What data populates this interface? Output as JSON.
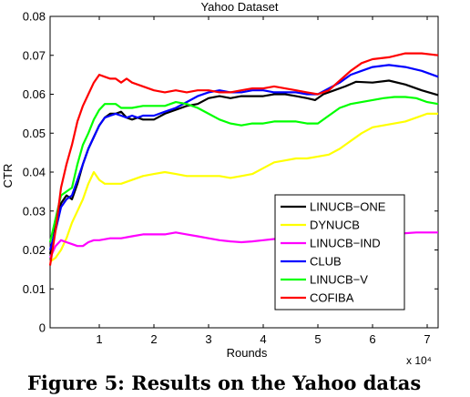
{
  "caption": "Figure 5: Results on the Yahoo datas",
  "chart_data": {
    "type": "line",
    "title": "Yahoo Dataset",
    "xlabel": "Rounds",
    "ylabel": "CTR",
    "x_multiplier_label": "x 10⁴",
    "xlim": [
      0.1,
      7.2
    ],
    "ylim": [
      0,
      0.08
    ],
    "x_ticks": [
      1,
      2,
      3,
      4,
      5,
      6,
      7
    ],
    "x_tick_labels": [
      "1",
      "2",
      "3",
      "4",
      "5",
      "6",
      "7"
    ],
    "y_ticks": [
      0,
      0.01,
      0.02,
      0.03,
      0.04,
      0.05,
      0.06,
      0.07,
      0.08
    ],
    "y_tick_labels": [
      "0",
      "0.01",
      "0.02",
      "0.03",
      "0.04",
      "0.05",
      "0.06",
      "0.07",
      "0.08"
    ],
    "grid": false,
    "legend_position": "lower-right",
    "series": [
      {
        "name": "LINUCB−ONE",
        "color": "#000000",
        "x": [
          0.1,
          0.2,
          0.3,
          0.4,
          0.5,
          0.6,
          0.7,
          0.8,
          0.9,
          1.0,
          1.1,
          1.2,
          1.3,
          1.4,
          1.5,
          1.6,
          1.7,
          1.8,
          2.0,
          2.2,
          2.4,
          2.6,
          2.8,
          3.0,
          3.2,
          3.4,
          3.6,
          3.8,
          4.0,
          4.2,
          4.4,
          4.6,
          4.8,
          4.95,
          5.1,
          5.3,
          5.5,
          5.7,
          6.0,
          6.3,
          6.6,
          6.9,
          7.2
        ],
        "y": [
          0.019,
          0.026,
          0.032,
          0.034,
          0.033,
          0.037,
          0.042,
          0.046,
          0.049,
          0.052,
          0.054,
          0.055,
          0.055,
          0.0555,
          0.054,
          0.0535,
          0.054,
          0.0535,
          0.0535,
          0.055,
          0.056,
          0.057,
          0.0575,
          0.059,
          0.0595,
          0.059,
          0.0595,
          0.0595,
          0.0595,
          0.06,
          0.06,
          0.0595,
          0.059,
          0.0585,
          0.06,
          0.061,
          0.062,
          0.0632,
          0.063,
          0.0635,
          0.0625,
          0.061,
          0.0598
        ]
      },
      {
        "name": "DYNUCB",
        "color": "#ffff00",
        "x": [
          0.1,
          0.2,
          0.3,
          0.4,
          0.5,
          0.6,
          0.7,
          0.8,
          0.9,
          1.0,
          1.1,
          1.2,
          1.4,
          1.6,
          1.8,
          2.0,
          2.2,
          2.4,
          2.6,
          2.8,
          3.0,
          3.2,
          3.4,
          3.6,
          3.8,
          4.0,
          4.2,
          4.4,
          4.6,
          4.8,
          5.0,
          5.2,
          5.4,
          5.6,
          5.8,
          6.0,
          6.2,
          6.4,
          6.6,
          6.8,
          7.0,
          7.2
        ],
        "y": [
          0.017,
          0.018,
          0.02,
          0.023,
          0.027,
          0.03,
          0.033,
          0.037,
          0.04,
          0.038,
          0.037,
          0.037,
          0.037,
          0.038,
          0.039,
          0.0395,
          0.04,
          0.0395,
          0.039,
          0.039,
          0.039,
          0.039,
          0.0385,
          0.039,
          0.0395,
          0.041,
          0.0425,
          0.043,
          0.0435,
          0.0435,
          0.044,
          0.0445,
          0.046,
          0.048,
          0.05,
          0.0515,
          0.052,
          0.0525,
          0.053,
          0.054,
          0.055,
          0.055
        ]
      },
      {
        "name": "LINUCB−IND",
        "color": "#ff00ff",
        "x": [
          0.1,
          0.2,
          0.3,
          0.4,
          0.5,
          0.6,
          0.7,
          0.8,
          0.9,
          1.0,
          1.2,
          1.4,
          1.6,
          1.8,
          2.0,
          2.2,
          2.4,
          2.6,
          2.8,
          3.0,
          3.2,
          3.4,
          3.6,
          3.8,
          4.0,
          4.2,
          4.4,
          4.6,
          4.8,
          5.0,
          5.2,
          5.4,
          5.6,
          5.8,
          6.0,
          6.2,
          6.4,
          6.6,
          6.8,
          7.0,
          7.2
        ],
        "y": [
          0.018,
          0.021,
          0.0225,
          0.022,
          0.0215,
          0.021,
          0.021,
          0.022,
          0.0225,
          0.0225,
          0.023,
          0.023,
          0.0235,
          0.024,
          0.024,
          0.024,
          0.0245,
          0.024,
          0.0235,
          0.023,
          0.0225,
          0.0222,
          0.022,
          0.0222,
          0.0225,
          0.0228,
          0.0228,
          0.0225,
          0.0225,
          0.0225,
          0.0228,
          0.023,
          0.0232,
          0.0235,
          0.0238,
          0.024,
          0.0242,
          0.0243,
          0.0245,
          0.0245,
          0.0245
        ]
      },
      {
        "name": "CLUB",
        "color": "#0000ff",
        "x": [
          0.1,
          0.2,
          0.3,
          0.4,
          0.5,
          0.6,
          0.7,
          0.8,
          0.9,
          1.0,
          1.1,
          1.2,
          1.3,
          1.4,
          1.5,
          1.6,
          1.7,
          1.8,
          2.0,
          2.2,
          2.4,
          2.6,
          2.8,
          3.0,
          3.2,
          3.4,
          3.6,
          3.8,
          4.0,
          4.2,
          4.4,
          4.6,
          4.8,
          5.0,
          5.2,
          5.4,
          5.6,
          5.8,
          6.0,
          6.3,
          6.6,
          6.9,
          7.2
        ],
        "y": [
          0.02,
          0.025,
          0.031,
          0.033,
          0.034,
          0.038,
          0.042,
          0.046,
          0.049,
          0.052,
          0.054,
          0.0545,
          0.055,
          0.0545,
          0.054,
          0.0545,
          0.054,
          0.0545,
          0.0545,
          0.0555,
          0.0565,
          0.058,
          0.0595,
          0.0605,
          0.061,
          0.0605,
          0.0605,
          0.061,
          0.061,
          0.0605,
          0.0605,
          0.0605,
          0.06,
          0.06,
          0.0615,
          0.063,
          0.065,
          0.066,
          0.067,
          0.0675,
          0.067,
          0.066,
          0.0645
        ]
      },
      {
        "name": "LINUCB−V",
        "color": "#00ff00",
        "x": [
          0.1,
          0.2,
          0.3,
          0.4,
          0.5,
          0.6,
          0.7,
          0.8,
          0.9,
          1.0,
          1.1,
          1.2,
          1.3,
          1.4,
          1.6,
          1.8,
          2.0,
          2.2,
          2.4,
          2.6,
          2.8,
          3.0,
          3.2,
          3.4,
          3.6,
          3.8,
          4.0,
          4.2,
          4.4,
          4.6,
          4.8,
          5.0,
          5.2,
          5.4,
          5.6,
          5.8,
          6.0,
          6.2,
          6.4,
          6.6,
          6.8,
          7.0,
          7.2
        ],
        "y": [
          0.022,
          0.028,
          0.034,
          0.035,
          0.036,
          0.042,
          0.047,
          0.05,
          0.0535,
          0.056,
          0.0575,
          0.0575,
          0.0575,
          0.0565,
          0.0565,
          0.057,
          0.057,
          0.057,
          0.058,
          0.0575,
          0.0565,
          0.055,
          0.0535,
          0.0525,
          0.052,
          0.0525,
          0.0525,
          0.053,
          0.053,
          0.053,
          0.0525,
          0.0525,
          0.0545,
          0.0565,
          0.0575,
          0.058,
          0.0585,
          0.059,
          0.0593,
          0.0593,
          0.059,
          0.058,
          0.0575
        ]
      },
      {
        "name": "COFIBA",
        "color": "#ff0000",
        "x": [
          0.1,
          0.2,
          0.3,
          0.4,
          0.5,
          0.6,
          0.7,
          0.8,
          0.9,
          1.0,
          1.1,
          1.2,
          1.3,
          1.4,
          1.5,
          1.6,
          1.8,
          2.0,
          2.2,
          2.4,
          2.6,
          2.8,
          3.0,
          3.2,
          3.4,
          3.6,
          3.8,
          4.0,
          4.2,
          4.4,
          4.6,
          4.8,
          5.0,
          5.2,
          5.4,
          5.6,
          5.8,
          6.0,
          6.3,
          6.6,
          6.9,
          7.2
        ],
        "y": [
          0.016,
          0.025,
          0.036,
          0.042,
          0.047,
          0.053,
          0.057,
          0.06,
          0.063,
          0.065,
          0.0645,
          0.064,
          0.064,
          0.063,
          0.064,
          0.063,
          0.062,
          0.061,
          0.0605,
          0.061,
          0.0605,
          0.061,
          0.061,
          0.0605,
          0.0605,
          0.061,
          0.0615,
          0.0615,
          0.062,
          0.0615,
          0.061,
          0.0605,
          0.06,
          0.061,
          0.0635,
          0.066,
          0.068,
          0.069,
          0.0695,
          0.0705,
          0.0705,
          0.07
        ]
      }
    ]
  }
}
